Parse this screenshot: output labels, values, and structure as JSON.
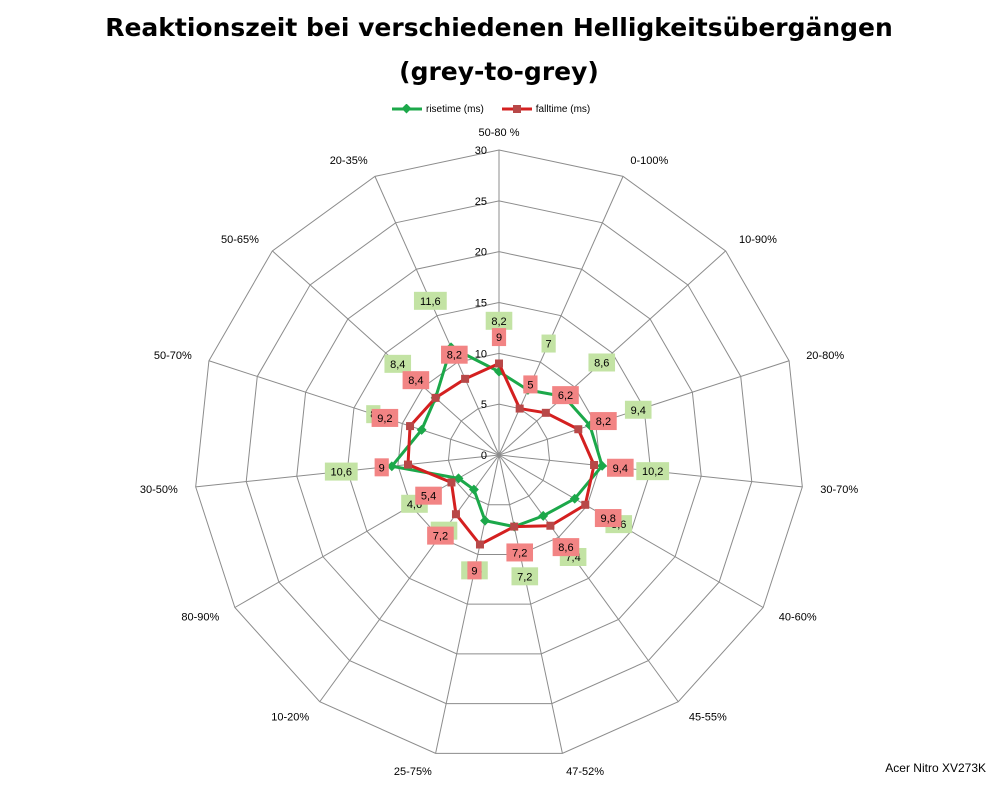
{
  "title_line1": "Reaktionszeit bei verschiedenen Helligkeitsübergängen",
  "title_line2": "(grey-to-grey)",
  "watermark": "Acer Nitro XV273K",
  "chart_data": {
    "type": "radar",
    "title": "Reaktionszeit bei verschiedenen Helligkeitsübergängen (grey-to-grey)",
    "categories": [
      "50-80 %",
      "0-100%",
      "10-90%",
      "20-80%",
      "30-70%",
      "40-60%",
      "45-55%",
      "47-52%",
      "25-75%",
      "10-20%",
      "80-90%",
      "30-50%",
      "50-70%",
      "50-65%",
      "20-35%"
    ],
    "radial_ticks": [
      0,
      5,
      10,
      15,
      20,
      25,
      30
    ],
    "rlim": [
      0,
      30
    ],
    "series": [
      {
        "name": "risetime (ms)",
        "color": "#1ca84a",
        "values": [
          8.2,
          7,
          8.6,
          9.4,
          10.2,
          8.6,
          7.4,
          7.2,
          6.6,
          4.2,
          4.6,
          10.6,
          8,
          8.4,
          11.6
        ],
        "labels": [
          "8,2",
          "7",
          "8,6",
          "9,4",
          "10,2",
          "8,6",
          "7,4",
          "7,2",
          "6,6",
          "4,2",
          "4,6",
          "10,6",
          "8",
          "8,4",
          "11,6"
        ]
      },
      {
        "name": "falltime (ms)",
        "color": "#d42020",
        "values": [
          9,
          5,
          6.2,
          8.2,
          9.4,
          9.8,
          8.6,
          7.2,
          9,
          7.2,
          5.4,
          9,
          9.2,
          8.4,
          8.2
        ],
        "labels": [
          "9",
          "5",
          "6,2",
          "8,2",
          "9,4",
          "9,8",
          "8,6",
          "7,2",
          "9",
          "7,2",
          "5,4",
          "9",
          "9,2",
          "8,4",
          "8,2"
        ]
      }
    ],
    "legend": "top"
  }
}
